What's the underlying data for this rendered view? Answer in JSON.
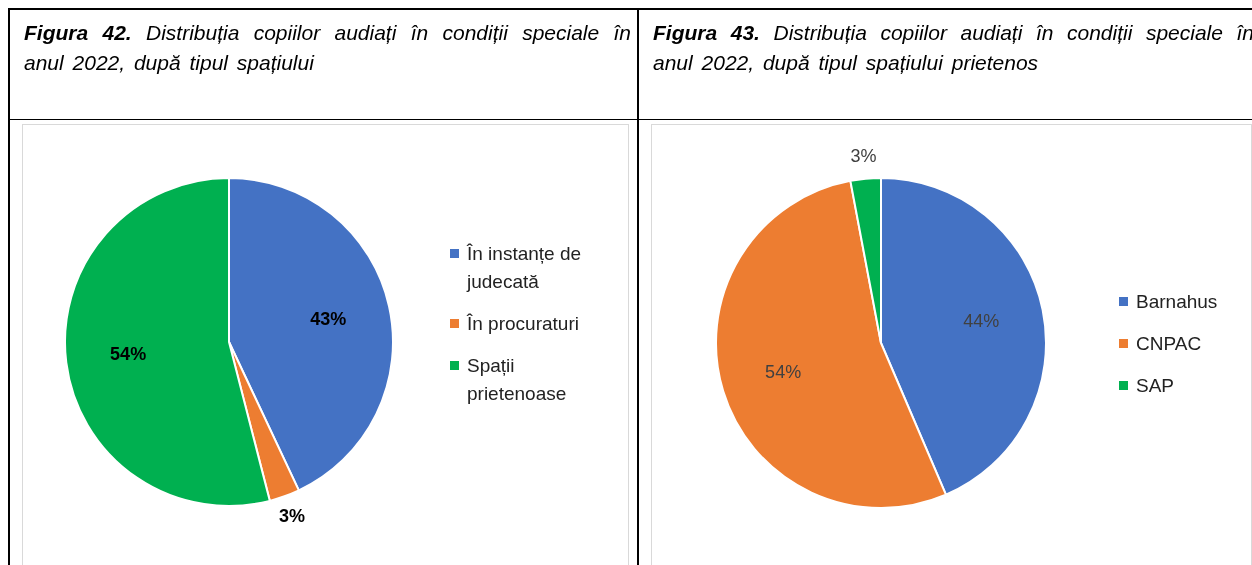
{
  "chart_data": [
    {
      "type": "pie",
      "title": "Figura 42. Distribuția copiilor audiați în condiții speciale în anul 2022, după tipul spațiului",
      "categories": [
        "În instanțe de judecată",
        "În procuraturi",
        "Spații prietenoase"
      ],
      "values": [
        43,
        3,
        54
      ],
      "value_labels": [
        "43%",
        "3%",
        "54%"
      ],
      "colors": [
        "#4472c4",
        "#ed7d31",
        "#00b050"
      ],
      "legend": "right"
    },
    {
      "type": "pie",
      "title": "Figura 43. Distribuția copiilor audiați în condiții speciale în anul 2022, după tipul spațiului prietenos",
      "categories": [
        "Barnahus",
        "CNPAC",
        "SAP"
      ],
      "values": [
        44,
        54,
        3
      ],
      "value_labels": [
        "44%",
        "54%",
        "3%"
      ],
      "colors": [
        "#4472c4",
        "#ed7d31",
        "#00b050"
      ],
      "legend": "right"
    }
  ]
}
